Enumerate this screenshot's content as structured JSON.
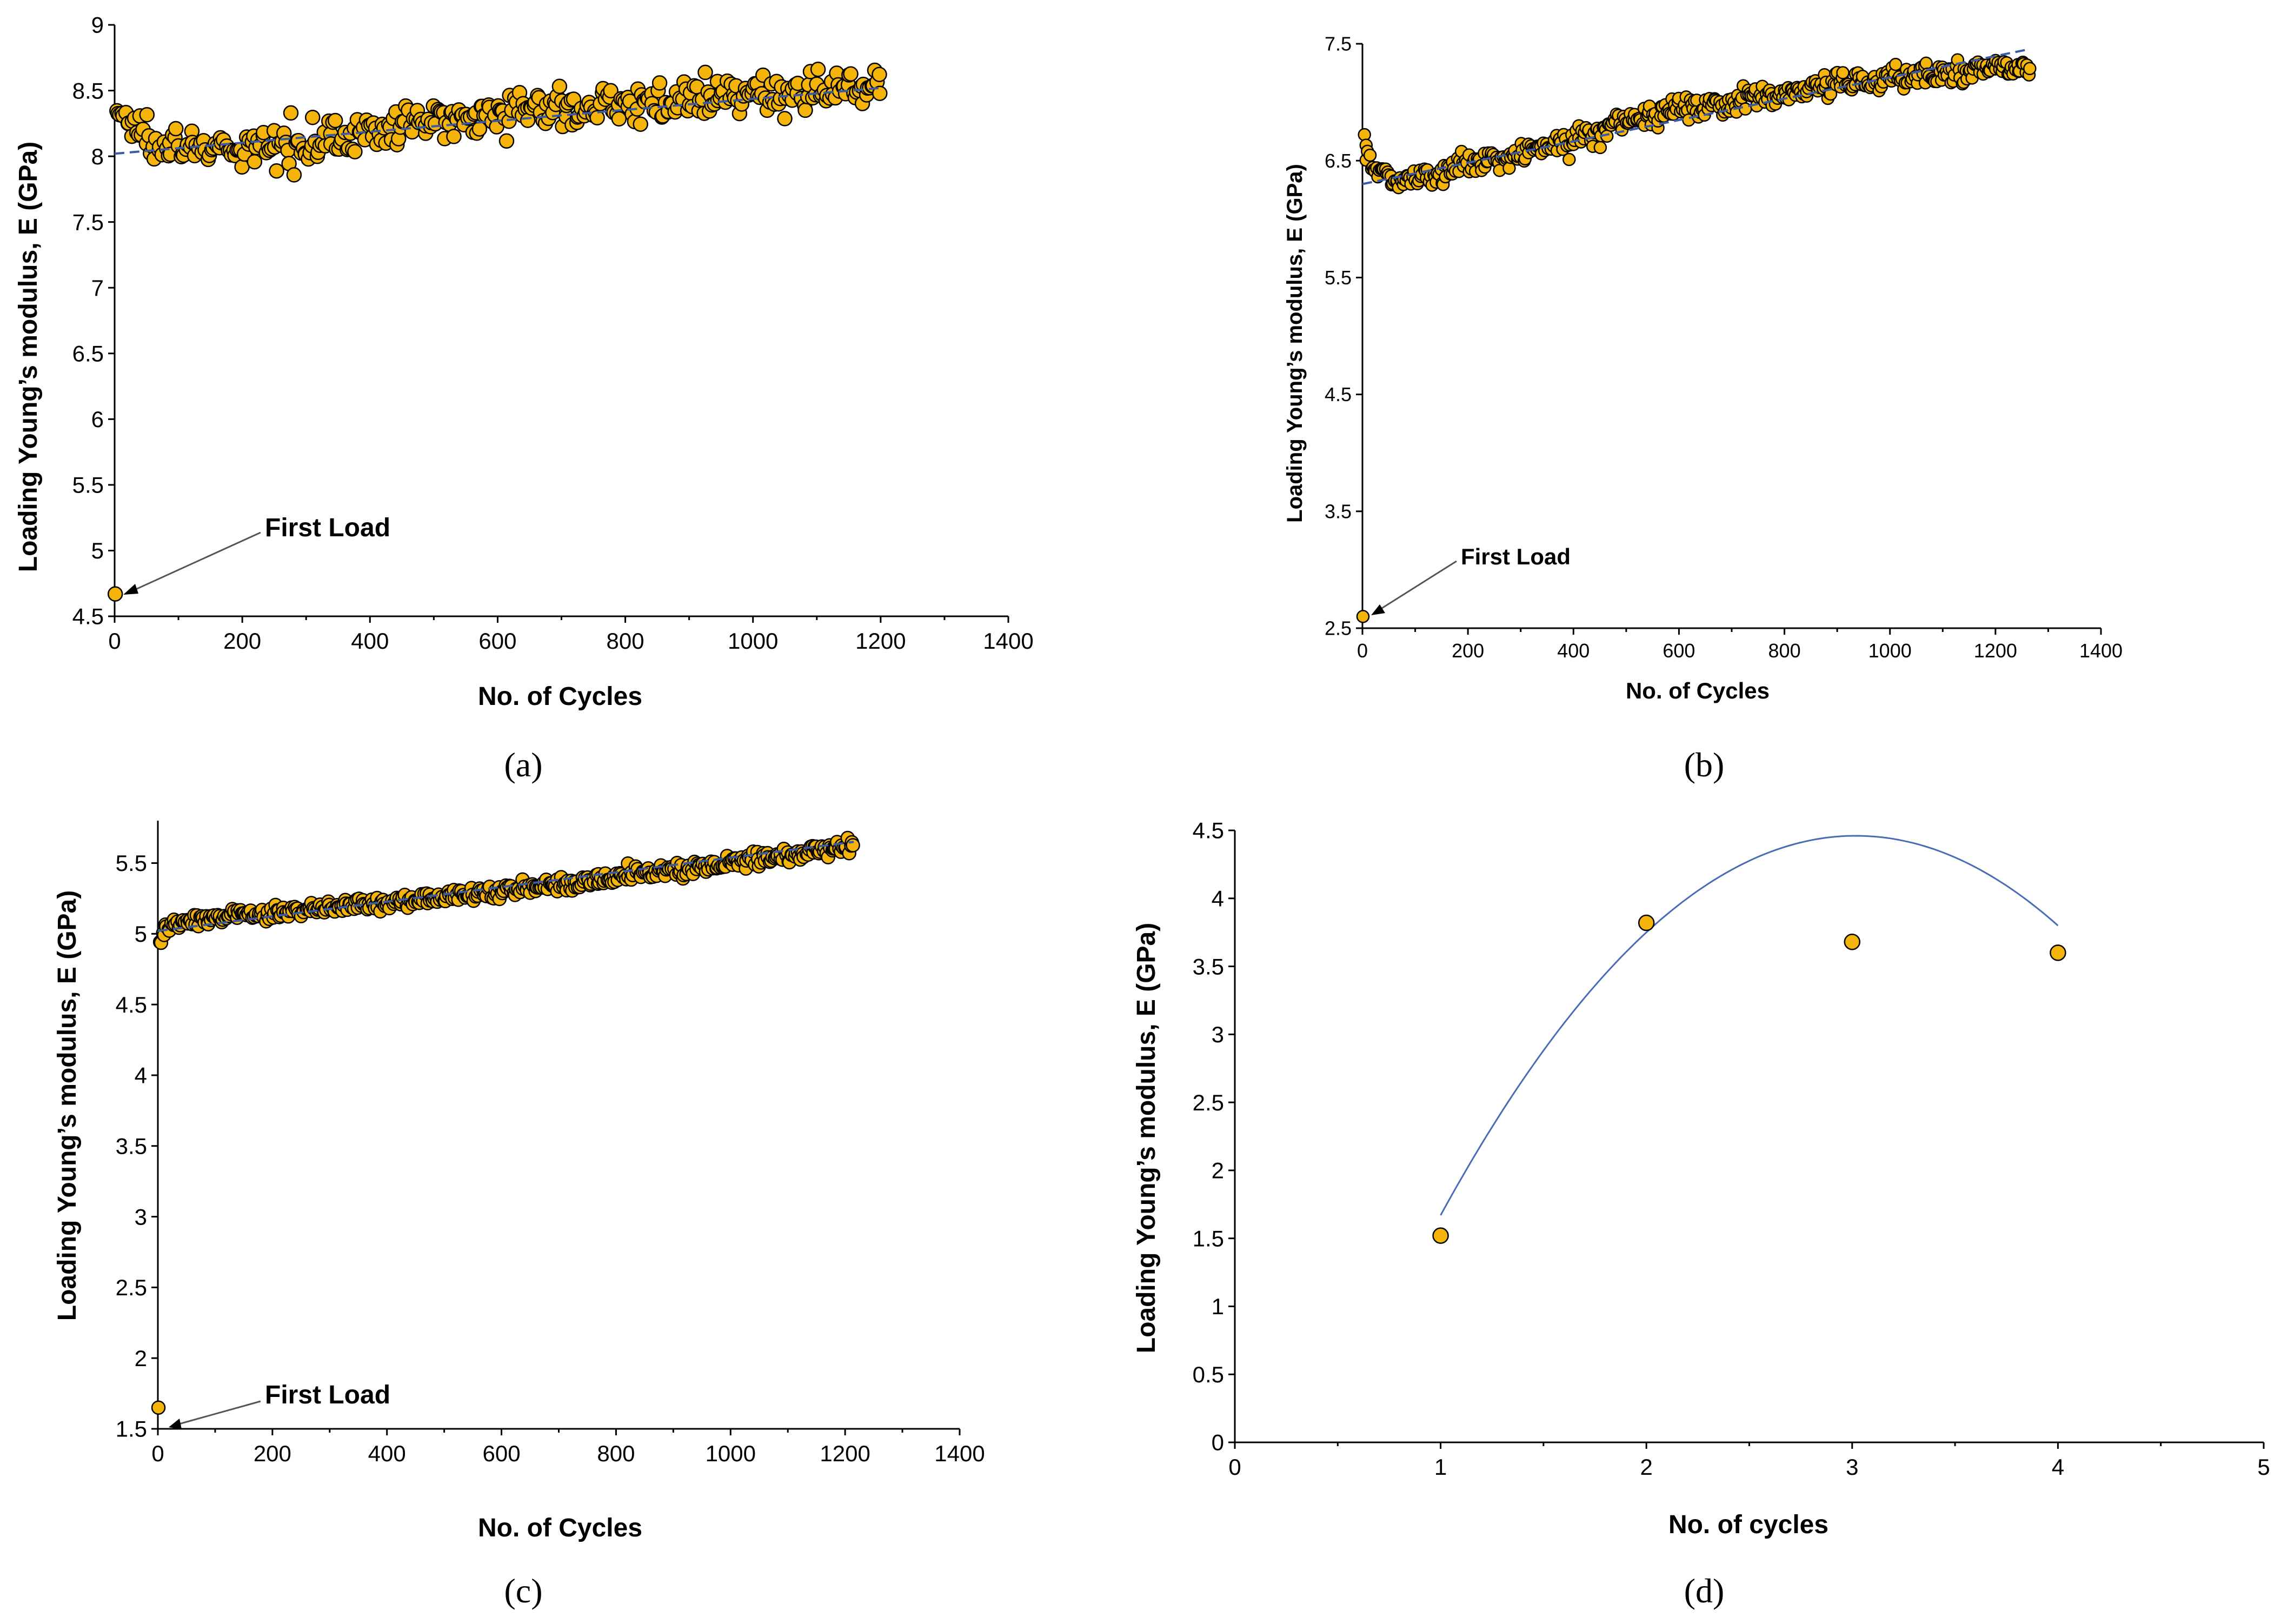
{
  "colors": {
    "marker": "#F5B40A",
    "marker_edge": "#000000",
    "trend": "#3B5BA5",
    "fit": "#4A6BB5"
  },
  "chart_data": [
    {
      "id": "a",
      "type": "scatter",
      "panel_label": "(a)",
      "xlabel": "No. of Cycles",
      "ylabel": "Loading Young’s modulus, E (GPa)",
      "xlim": [
        0,
        1400
      ],
      "ylim": [
        4.5,
        9
      ],
      "xticks": [
        0,
        200,
        400,
        600,
        800,
        1000,
        1200,
        1400
      ],
      "yticks": [
        4.5,
        5,
        5.5,
        6,
        6.5,
        7,
        7.5,
        8,
        8.5,
        9
      ],
      "annotation": {
        "text": "First Load",
        "x": 1,
        "y": 4.67
      },
      "first_load": {
        "x": 1,
        "y": 4.67
      },
      "trend_line": {
        "x": [
          0,
          1200
        ],
        "y": [
          8.02,
          8.52
        ]
      },
      "anchors": {
        "x": [
          3,
          30,
          80,
          130,
          180,
          230,
          300,
          400,
          500,
          600,
          700,
          800,
          900,
          1000,
          1100,
          1200
        ],
        "y": [
          8.35,
          8.22,
          8.12,
          8.06,
          8.03,
          8.06,
          8.12,
          8.18,
          8.27,
          8.35,
          8.37,
          8.4,
          8.42,
          8.46,
          8.5,
          8.55
        ]
      },
      "scatter": {
        "n": 420,
        "xmin": 3,
        "xmax": 1200,
        "spread": 0.14
      }
    },
    {
      "id": "b",
      "type": "scatter",
      "panel_label": "(b)",
      "xlabel": "No. of Cycles",
      "ylabel": "Loading Young’s modulus, E (GPa)",
      "xlim": [
        0,
        1400
      ],
      "ylim": [
        2.5,
        7.5
      ],
      "xticks": [
        0,
        200,
        400,
        600,
        800,
        1000,
        1200,
        1400
      ],
      "yticks": [
        2.5,
        3.5,
        4.5,
        5.5,
        6.5,
        7.5
      ],
      "annotation": {
        "text": "First Load",
        "x": 1,
        "y": 2.6
      },
      "first_load": {
        "x": 1,
        "y": 2.6
      },
      "trend_line": {
        "x": [
          0,
          1260
        ],
        "y": [
          6.3,
          7.45
        ]
      },
      "anchors": {
        "x": [
          3,
          20,
          50,
          100,
          150,
          200,
          300,
          400,
          500,
          600,
          700,
          800,
          900,
          1000,
          1100,
          1200,
          1260
        ],
        "y": [
          6.65,
          6.45,
          6.35,
          6.35,
          6.4,
          6.48,
          6.55,
          6.7,
          6.85,
          6.95,
          7.0,
          7.08,
          7.15,
          7.2,
          7.25,
          7.3,
          7.3
        ]
      },
      "scatter": {
        "n": 480,
        "xmin": 3,
        "xmax": 1265,
        "spread": 0.1
      }
    },
    {
      "id": "c",
      "type": "scatter",
      "panel_label": "(c)",
      "xlabel": "No. of Cycles",
      "ylabel": "Loading Young’s modulus, E (GPa)",
      "xlim": [
        0,
        1400
      ],
      "ylim": [
        1.5,
        5.8
      ],
      "xticks": [
        0,
        200,
        400,
        600,
        800,
        1000,
        1200,
        1400
      ],
      "yticks": [
        1.5,
        2,
        2.5,
        3,
        3.5,
        4,
        4.5,
        5,
        5.5
      ],
      "annotation": {
        "text": "First Load",
        "x": 1,
        "y": 1.65
      },
      "first_load": {
        "x": 1,
        "y": 1.65
      },
      "trend_line": {
        "x": [
          0,
          1215
        ],
        "y": [
          5.02,
          5.65
        ]
      },
      "anchors": {
        "x": [
          3,
          10,
          30,
          60,
          100,
          200,
          300,
          400,
          500,
          600,
          700,
          800,
          900,
          1000,
          1100,
          1215
        ],
        "y": [
          4.95,
          5.0,
          5.08,
          5.1,
          5.12,
          5.15,
          5.18,
          5.22,
          5.26,
          5.3,
          5.35,
          5.4,
          5.45,
          5.5,
          5.56,
          5.62
        ]
      },
      "scatter": {
        "n": 480,
        "xmin": 3,
        "xmax": 1215,
        "spread": 0.05
      }
    },
    {
      "id": "d",
      "type": "scatter",
      "panel_label": "(d)",
      "xlabel": "No. of cycles",
      "ylabel": "Loading Young’s modulus, E (GPa)",
      "xlim": [
        0,
        5
      ],
      "ylim": [
        0,
        4.5
      ],
      "xticks": [
        0,
        1,
        2,
        3,
        4,
        5
      ],
      "yticks": [
        0,
        0.5,
        1,
        1.5,
        2,
        2.5,
        3,
        3.5,
        4,
        4.5
      ],
      "points": {
        "x": [
          1,
          2,
          3,
          4
        ],
        "y": [
          1.52,
          3.82,
          3.68,
          3.6
        ]
      },
      "fit_curve": {
        "type": "quadratic",
        "coef": [
          -0.685,
          4.135,
          -1.78
        ],
        "x_range": [
          1,
          4
        ]
      }
    }
  ]
}
